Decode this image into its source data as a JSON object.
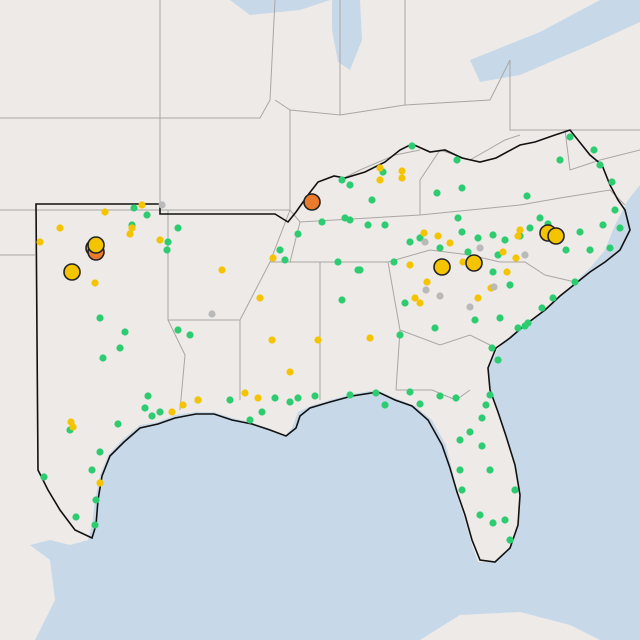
{
  "map": {
    "colors": {
      "water": "#c7d9e8",
      "land": "#eeeae8",
      "state_border": "#a9a6a4",
      "region_outline": "#111111",
      "marker_green": "#2ecc71",
      "marker_yellow": "#f5c400",
      "marker_gray": "#b9b9b9",
      "marker_orange": "#ea7b2d",
      "marker_stroke": "#222222"
    },
    "layers": [
      "ocean",
      "land",
      "state-borders",
      "highlighted-region-outline",
      "station-markers"
    ],
    "marker_categories": [
      "green",
      "yellow",
      "gray",
      "orange"
    ],
    "large_marker_count": 8
  }
}
